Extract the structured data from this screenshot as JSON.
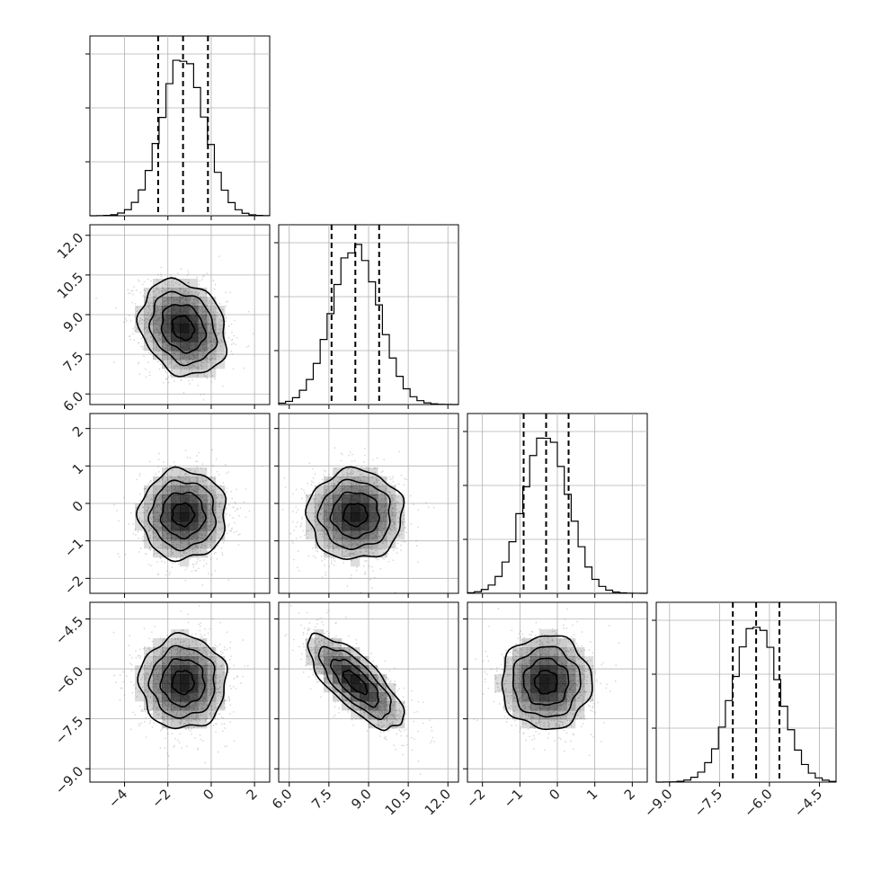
{
  "chart_data": {
    "type": "corner",
    "title": "",
    "n_params": 4,
    "grid": true,
    "colors": {
      "line": "#000000",
      "grid": "#b0b0b0",
      "points": "#808080",
      "density": "#000000"
    },
    "params": [
      {
        "label": "",
        "xlim": [
          -5.6,
          2.7
        ],
        "ticks": [
          -4,
          -2,
          0,
          2
        ],
        "tick_labels": [
          "−4",
          "−2",
          "0",
          "2"
        ],
        "quantiles": [
          -2.45,
          -1.3,
          -0.15
        ],
        "hist_mean": -1.3,
        "hist_sd": 1.0
      },
      {
        "label": "",
        "xlim": [
          5.6,
          12.4
        ],
        "ticks": [
          6.0,
          7.5,
          9.0,
          10.5,
          12.0
        ],
        "tick_labels": [
          "6.0",
          "7.5",
          "9.0",
          "10.5",
          "12.0"
        ],
        "quantiles": [
          7.6,
          8.5,
          9.4
        ],
        "hist_mean": 8.5,
        "hist_sd": 0.9
      },
      {
        "label": "",
        "xlim": [
          -2.4,
          2.4
        ],
        "ticks": [
          -2,
          -1,
          0,
          1,
          2
        ],
        "tick_labels": [
          "−2",
          "−1",
          "0",
          "1",
          "2"
        ],
        "quantiles": [
          -0.9,
          -0.3,
          0.3
        ],
        "hist_mean": -0.3,
        "hist_sd": 0.6
      },
      {
        "label": "",
        "xlim": [
          -9.4,
          -4.0
        ],
        "ticks": [
          -9.0,
          -7.5,
          -6.0,
          -4.5
        ],
        "tick_labels": [
          "−9.0",
          "−7.5",
          "−6.0",
          "−4.5"
        ],
        "quantiles": [
          -7.1,
          -6.4,
          -5.7
        ],
        "hist_mean": -6.4,
        "hist_sd": 0.7
      }
    ],
    "correlations": [
      {
        "i": 1,
        "j": 0,
        "rho": -0.2
      },
      {
        "i": 2,
        "j": 0,
        "rho": 0.0
      },
      {
        "i": 2,
        "j": 1,
        "rho": 0.0
      },
      {
        "i": 3,
        "j": 0,
        "rho": 0.0
      },
      {
        "i": 3,
        "j": 1,
        "rho": -0.75
      },
      {
        "i": 3,
        "j": 2,
        "rho": 0.0
      }
    ],
    "contour_levels_sigma": [
      0.5,
      1.0,
      1.5,
      2.0
    ]
  }
}
